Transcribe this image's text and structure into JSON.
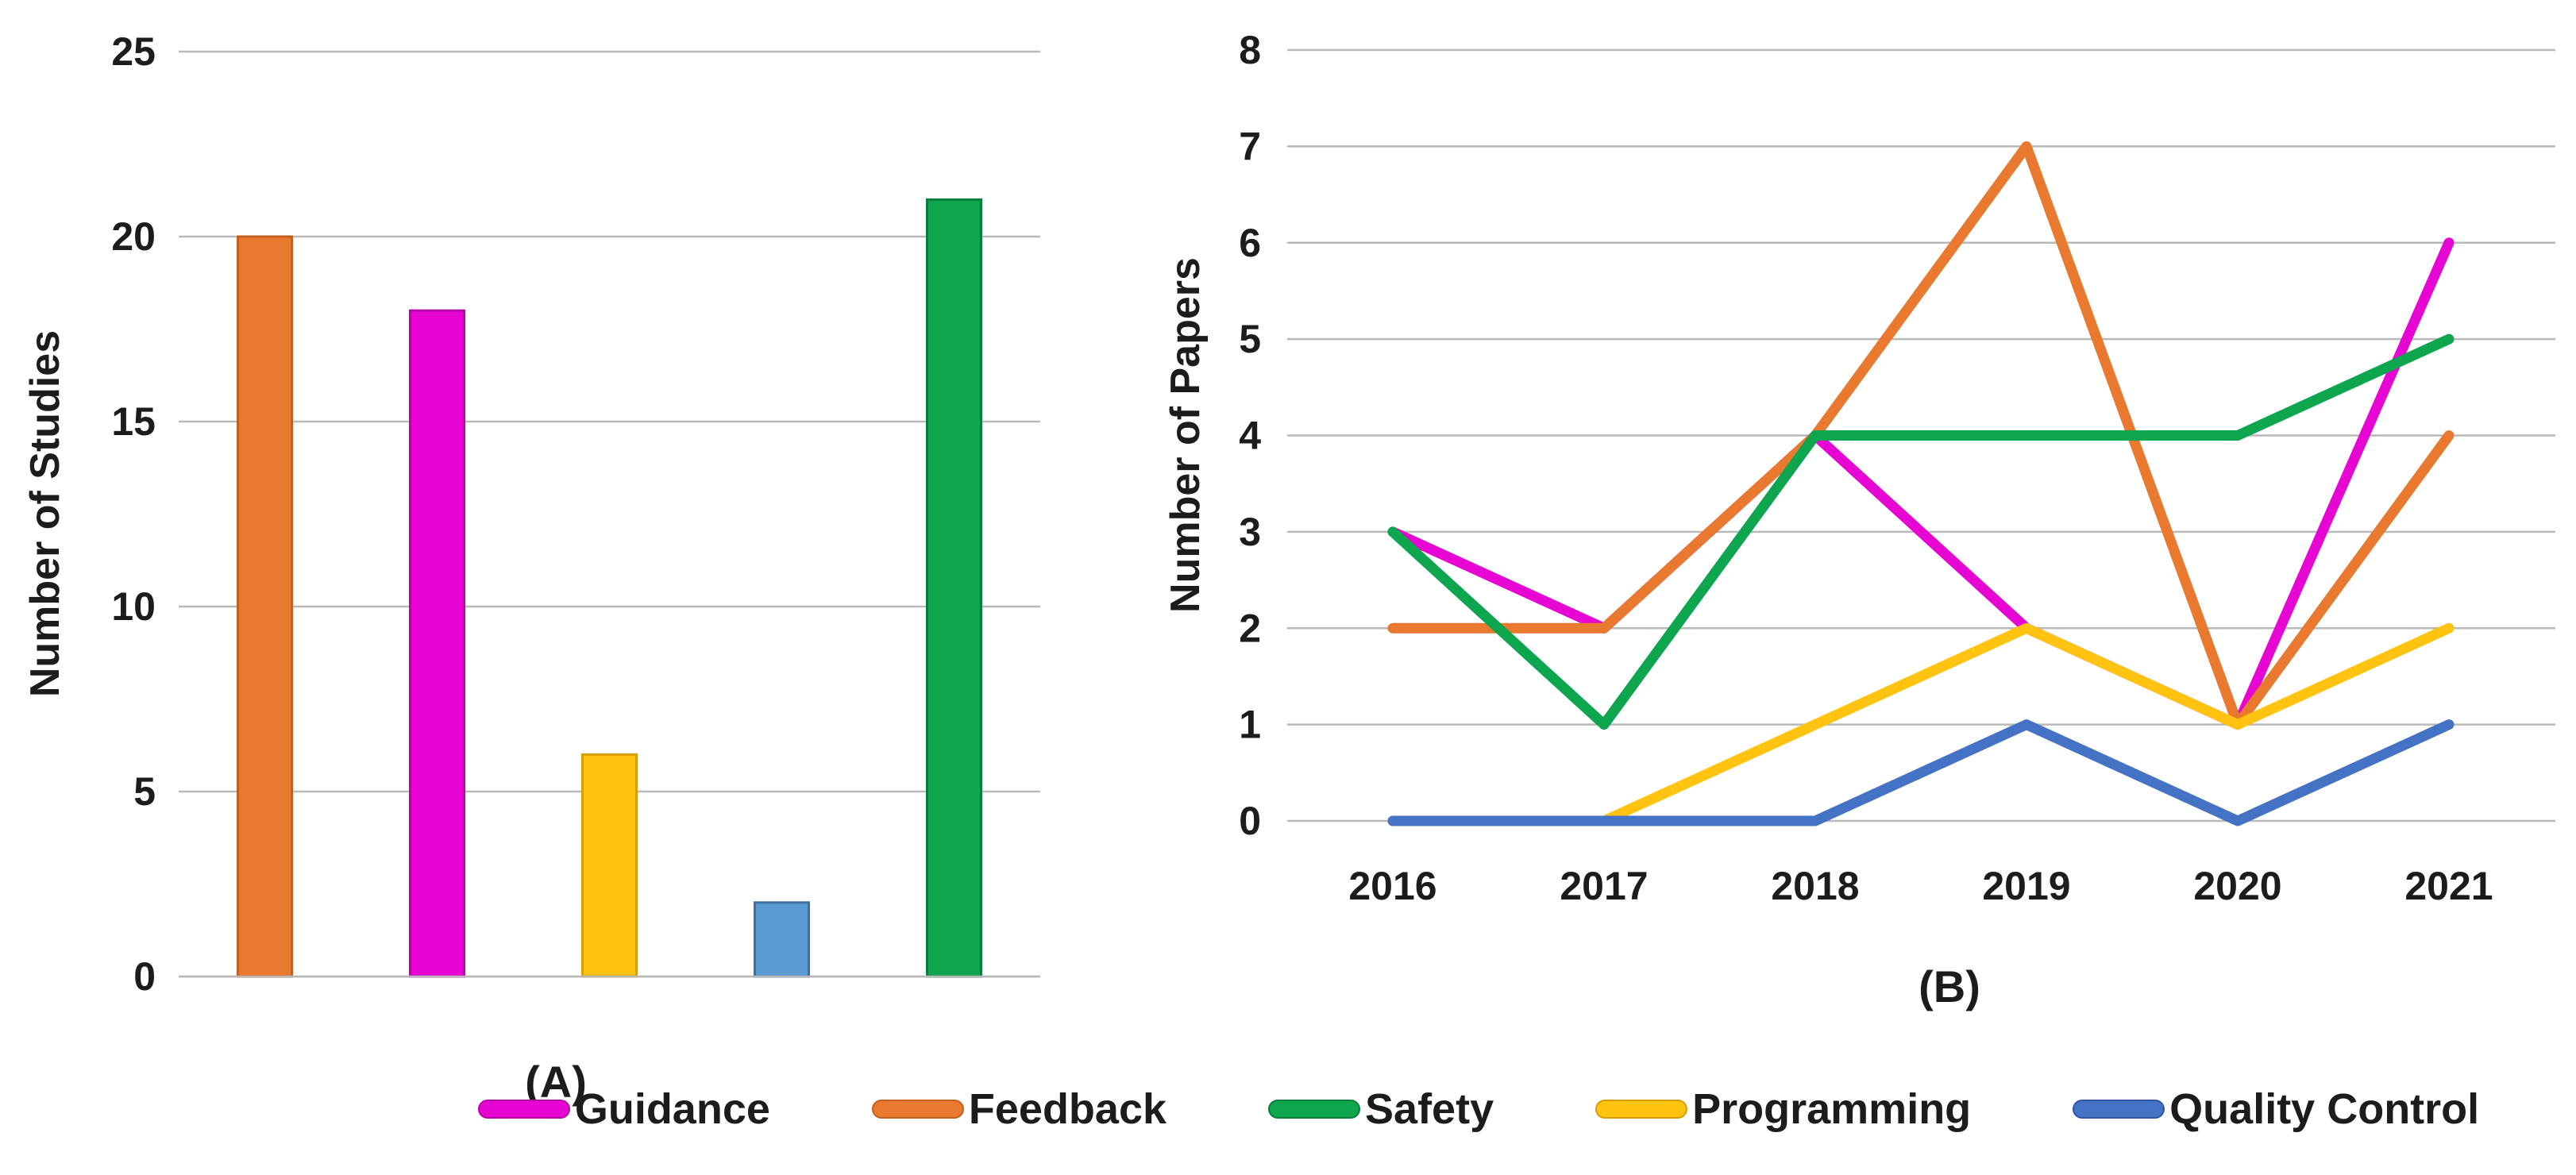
{
  "figure": {
    "panel_a_label": "(A)",
    "panel_b_label": "(B)",
    "background": "#FFFFFF",
    "text_color": "#1C1C1C",
    "gridline_color": "#B9B9B9"
  },
  "legend": {
    "position": "bottom",
    "items": [
      {
        "label": "Guidance",
        "color": "#E605D2",
        "border": "#B804A6"
      },
      {
        "label": "Feedback",
        "color": "#E8792E",
        "border": "#C2601F"
      },
      {
        "label": "Safety",
        "color": "#0DA64F",
        "border": "#0A7F3D"
      },
      {
        "label": "Programming",
        "color": "#FFC310",
        "border": "#D79D06"
      },
      {
        "label": "Quality Control",
        "color": "#4472C4",
        "border": "#2F55A4"
      }
    ]
  },
  "chart_data": [
    {
      "type": "bar",
      "panel": "A",
      "title": "",
      "xlabel": "",
      "ylabel": "Number of Studies",
      "ylim": [
        0,
        25
      ],
      "yticks": [
        0,
        5,
        10,
        15,
        20,
        25
      ],
      "grid": true,
      "categories": [
        "",
        "",
        "",
        "",
        ""
      ],
      "values": [
        20,
        18,
        6,
        2,
        21
      ],
      "bar_colors": [
        "#E8792E",
        "#E605D2",
        "#FFC310",
        "#5B9BD5",
        "#0DA64F"
      ],
      "bar_borders": [
        "#C2601F",
        "#B804A6",
        "#D79D06",
        "#3F6F9E",
        "#0A7F3D"
      ]
    },
    {
      "type": "line",
      "panel": "B",
      "title": "",
      "xlabel": "",
      "ylabel": "Number of Papers",
      "ylim": [
        0,
        8
      ],
      "yticks": [
        0,
        1,
        2,
        3,
        4,
        5,
        6,
        7,
        8
      ],
      "grid": true,
      "legend_position": "bottom",
      "x": [
        "2016",
        "2017",
        "2018",
        "2019",
        "2020",
        "2021"
      ],
      "series": [
        {
          "name": "Guidance",
          "color": "#E605D2",
          "values": [
            3,
            2,
            4,
            2,
            1,
            6
          ]
        },
        {
          "name": "Feedback",
          "color": "#E8792E",
          "values": [
            2,
            2,
            4,
            7,
            1,
            4
          ]
        },
        {
          "name": "Safety",
          "color": "#0DA64F",
          "values": [
            3,
            1,
            4,
            4,
            4,
            5
          ]
        },
        {
          "name": "Programming",
          "color": "#FFC310",
          "values": [
            0,
            0,
            1,
            2,
            1,
            2
          ]
        },
        {
          "name": "Quality Control",
          "color": "#4472C4",
          "values": [
            0,
            0,
            0,
            1,
            0,
            1
          ]
        }
      ]
    }
  ]
}
